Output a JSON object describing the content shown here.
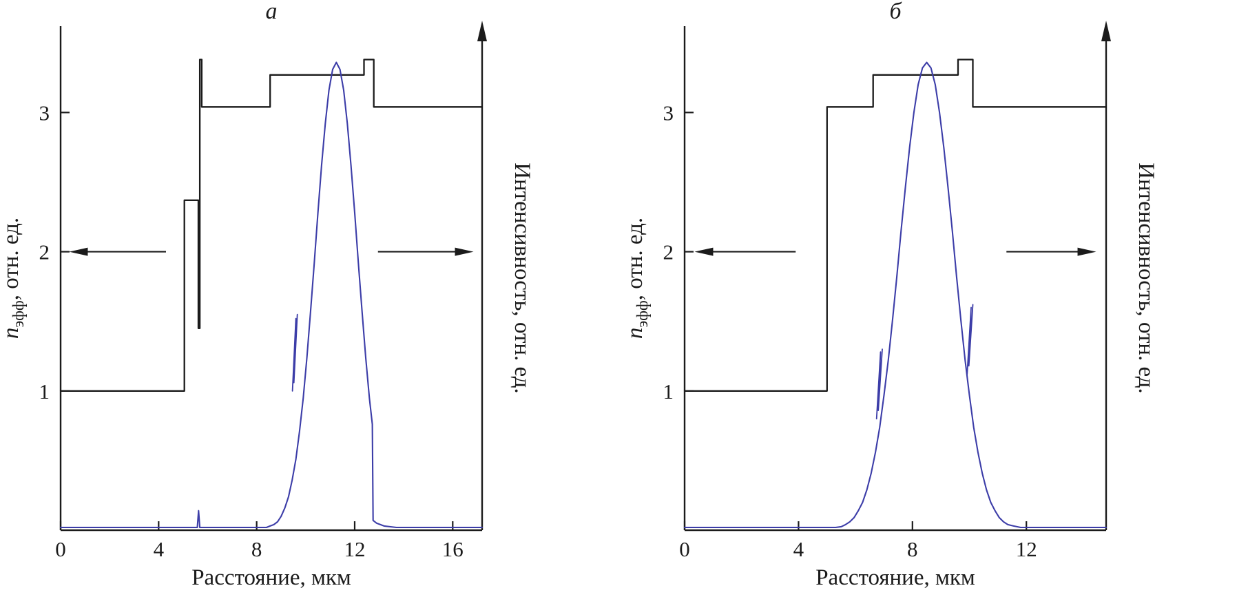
{
  "figure": {
    "background": "#ffffff",
    "axis": "#1b1b1b",
    "profile": "#1b1b1b",
    "intensity": "#3c3da8"
  },
  "chart_data": [
    {
      "type": "line",
      "panel_label": "а",
      "xlabel": "Расстояние, мкм",
      "ylabel_left": {
        "pre": "n",
        "sub": "эфф",
        "post": ", отн. ед."
      },
      "ylabel_right": "Интенсивность, отн. ед.",
      "xlim": [
        0,
        17.2
      ],
      "ylim": [
        0,
        3.62
      ],
      "x_ticks": [
        0,
        4,
        8,
        12,
        16
      ],
      "y_ticks": [
        1,
        2,
        3
      ],
      "grid": false,
      "legend": false,
      "series": [
        {
          "name": "refractive-index-profile",
          "color": "profile",
          "width": 2.3,
          "points": [
            [
              0,
              1
            ],
            [
              5.05,
              1
            ],
            [
              5.05,
              2.37
            ],
            [
              5.62,
              2.37
            ],
            [
              5.62,
              1.45
            ],
            [
              5.68,
              1.45
            ],
            [
              5.68,
              3.38
            ],
            [
              5.76,
              3.38
            ],
            [
              5.76,
              3.04
            ],
            [
              8.55,
              3.04
            ],
            [
              8.55,
              3.27
            ],
            [
              12.38,
              3.27
            ],
            [
              12.38,
              3.38
            ],
            [
              12.78,
              3.38
            ],
            [
              12.78,
              3.04
            ],
            [
              17.2,
              3.04
            ]
          ]
        },
        {
          "name": "mode-intensity",
          "color": "intensity",
          "width": 2.1,
          "points": [
            [
              0,
              0.02
            ],
            [
              1.5,
              0.02
            ],
            [
              3,
              0.02
            ],
            [
              4.5,
              0.02
            ],
            [
              5.58,
              0.02
            ],
            [
              5.63,
              0.14
            ],
            [
              5.68,
              0.02
            ],
            [
              6.4,
              0.02
            ],
            [
              7.2,
              0.02
            ],
            [
              8,
              0.02
            ],
            [
              8.4,
              0.02
            ],
            [
              8.55,
              0.03
            ],
            [
              8.7,
              0.04
            ],
            [
              8.85,
              0.06
            ],
            [
              9,
              0.1
            ],
            [
              9.15,
              0.16
            ],
            [
              9.3,
              0.24
            ],
            [
              9.45,
              0.36
            ],
            [
              9.6,
              0.51
            ],
            [
              9.75,
              0.71
            ],
            [
              9.9,
              0.95
            ],
            [
              10.05,
              1.24
            ],
            [
              10.2,
              1.57
            ],
            [
              10.35,
              1.92
            ],
            [
              10.5,
              2.28
            ],
            [
              10.65,
              2.62
            ],
            [
              10.8,
              2.92
            ],
            [
              10.95,
              3.16
            ],
            [
              11.1,
              3.31
            ],
            [
              11.25,
              3.36
            ],
            [
              11.4,
              3.31
            ],
            [
              11.55,
              3.16
            ],
            [
              11.7,
              2.92
            ],
            [
              11.85,
              2.62
            ],
            [
              12,
              2.28
            ],
            [
              12.15,
              1.92
            ],
            [
              12.3,
              1.57
            ],
            [
              12.45,
              1.24
            ],
            [
              12.6,
              0.95
            ],
            [
              12.72,
              0.76
            ],
            [
              12.75,
              0.07
            ],
            [
              12.9,
              0.05
            ],
            [
              13.2,
              0.03
            ],
            [
              13.7,
              0.02
            ],
            [
              14.5,
              0.02
            ],
            [
              15.5,
              0.02
            ],
            [
              16.4,
              0.02
            ],
            [
              17.2,
              0.02
            ]
          ]
        },
        {
          "name": "intensity-discontinuity-artifact",
          "color": "intensity",
          "width": 1.8,
          "points": [
            [
              9.46,
              1.0
            ],
            [
              9.6,
              1.52
            ],
            [
              9.52,
              1.06
            ],
            [
              9.66,
              1.55
            ]
          ]
        }
      ],
      "arrows": [
        {
          "name": "left-axis-arrow",
          "y": 2,
          "from_x": 4.3,
          "to_x": 0.35,
          "direction": "left"
        },
        {
          "name": "right-axis-arrow",
          "y": 2,
          "from_x": 12.95,
          "to_x": 16.85,
          "direction": "right"
        }
      ]
    },
    {
      "type": "line",
      "panel_label": "б",
      "xlabel": "Расстояние, мкм",
      "ylabel_left": {
        "pre": "n",
        "sub": "эфф",
        "post": ", отн. ед."
      },
      "ylabel_right": "Интенсивность, отн. ед.",
      "xlim": [
        0,
        14.8
      ],
      "ylim": [
        0,
        3.62
      ],
      "x_ticks": [
        0,
        4,
        8,
        12
      ],
      "y_ticks": [
        1,
        2,
        3
      ],
      "grid": false,
      "legend": false,
      "series": [
        {
          "name": "refractive-index-profile",
          "color": "profile",
          "width": 2.3,
          "points": [
            [
              0,
              1
            ],
            [
              5,
              1
            ],
            [
              5,
              3.04
            ],
            [
              6.62,
              3.04
            ],
            [
              6.62,
              3.27
            ],
            [
              9.6,
              3.27
            ],
            [
              9.6,
              3.38
            ],
            [
              10.12,
              3.38
            ],
            [
              10.12,
              3.04
            ],
            [
              14.8,
              3.04
            ]
          ]
        },
        {
          "name": "mode-intensity",
          "color": "intensity",
          "width": 2.1,
          "points": [
            [
              0,
              0.02
            ],
            [
              1.5,
              0.02
            ],
            [
              3,
              0.02
            ],
            [
              4.3,
              0.02
            ],
            [
              5,
              0.02
            ],
            [
              5.3,
              0.02
            ],
            [
              5.5,
              0.025
            ],
            [
              5.65,
              0.04
            ],
            [
              5.8,
              0.06
            ],
            [
              5.95,
              0.09
            ],
            [
              6.1,
              0.14
            ],
            [
              6.25,
              0.2
            ],
            [
              6.4,
              0.29
            ],
            [
              6.55,
              0.41
            ],
            [
              6.7,
              0.56
            ],
            [
              6.85,
              0.74
            ],
            [
              7,
              0.97
            ],
            [
              7.15,
              1.22
            ],
            [
              7.3,
              1.51
            ],
            [
              7.45,
              1.82
            ],
            [
              7.6,
              2.15
            ],
            [
              7.75,
              2.46
            ],
            [
              7.9,
              2.75
            ],
            [
              8.05,
              3.0
            ],
            [
              8.2,
              3.2
            ],
            [
              8.35,
              3.32
            ],
            [
              8.5,
              3.36
            ],
            [
              8.65,
              3.32
            ],
            [
              8.8,
              3.2
            ],
            [
              8.95,
              3.0
            ],
            [
              9.1,
              2.75
            ],
            [
              9.25,
              2.46
            ],
            [
              9.4,
              2.15
            ],
            [
              9.55,
              1.82
            ],
            [
              9.7,
              1.51
            ],
            [
              9.85,
              1.22
            ],
            [
              10,
              0.97
            ],
            [
              10.15,
              0.74
            ],
            [
              10.3,
              0.56
            ],
            [
              10.45,
              0.41
            ],
            [
              10.6,
              0.29
            ],
            [
              10.75,
              0.2
            ],
            [
              10.9,
              0.14
            ],
            [
              11.05,
              0.09
            ],
            [
              11.2,
              0.06
            ],
            [
              11.35,
              0.04
            ],
            [
              11.55,
              0.03
            ],
            [
              11.8,
              0.02
            ],
            [
              12.5,
              0.02
            ],
            [
              13.5,
              0.02
            ],
            [
              14.8,
              0.02
            ]
          ]
        },
        {
          "name": "intensity-discontinuity-artifact-left",
          "color": "intensity",
          "width": 1.8,
          "points": [
            [
              6.74,
              0.8
            ],
            [
              6.88,
              1.28
            ],
            [
              6.8,
              0.86
            ],
            [
              6.94,
              1.3
            ]
          ]
        },
        {
          "name": "intensity-discontinuity-artifact-right",
          "color": "intensity",
          "width": 1.8,
          "points": [
            [
              9.92,
              1.12
            ],
            [
              10.06,
              1.6
            ],
            [
              9.98,
              1.18
            ],
            [
              10.12,
              1.62
            ]
          ]
        }
      ],
      "arrows": [
        {
          "name": "left-axis-arrow",
          "y": 2,
          "from_x": 3.9,
          "to_x": 0.35,
          "direction": "left"
        },
        {
          "name": "right-axis-arrow",
          "y": 2,
          "from_x": 11.3,
          "to_x": 14.45,
          "direction": "right"
        }
      ]
    }
  ]
}
